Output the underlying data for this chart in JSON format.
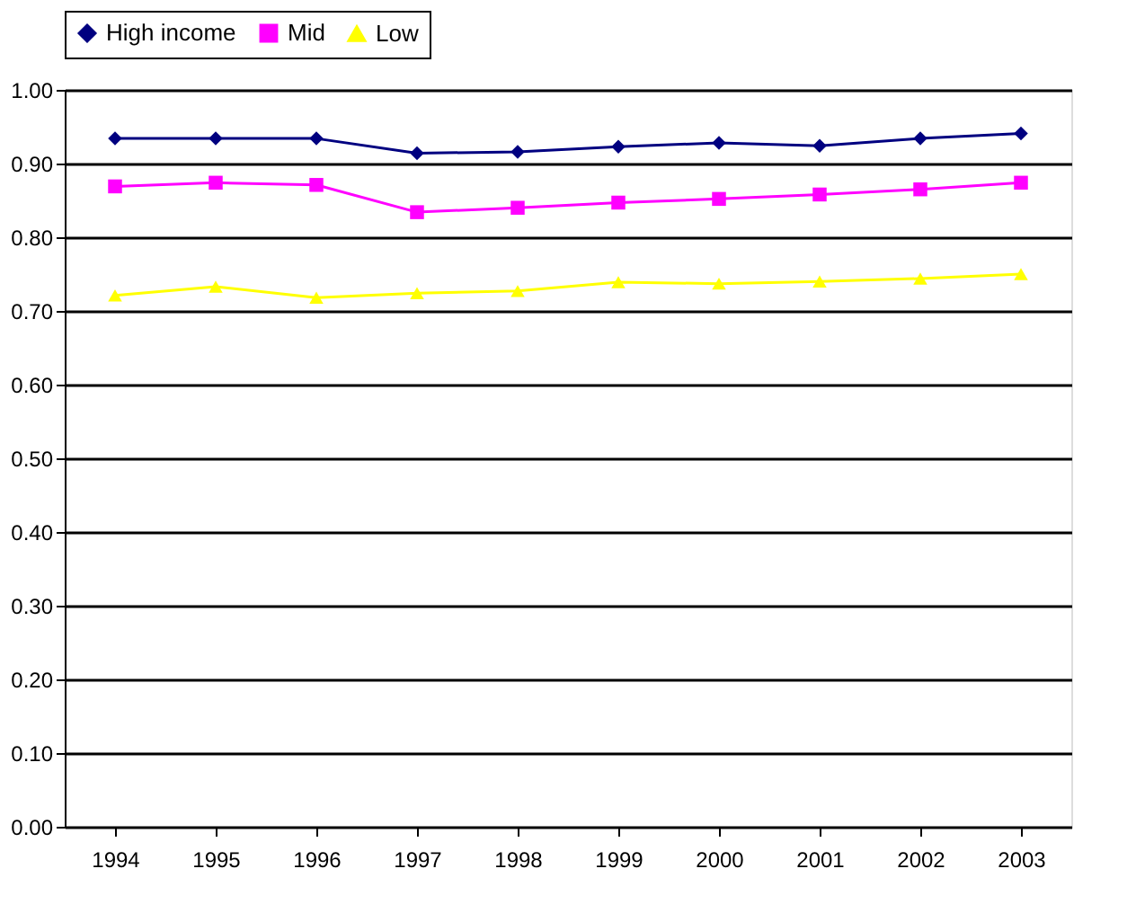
{
  "chart_data": {
    "type": "line",
    "categories": [
      "1994",
      "1995",
      "1996",
      "1997",
      "1998",
      "1999",
      "2000",
      "2001",
      "2002",
      "2003"
    ],
    "series": [
      {
        "name": "High income",
        "color": "#000080",
        "marker": "diamond",
        "values": [
          0.934,
          0.934,
          0.934,
          0.914,
          0.916,
          0.923,
          0.928,
          0.924,
          0.934,
          0.941
        ]
      },
      {
        "name": "Mid",
        "color": "#ff00ff",
        "marker": "square",
        "values": [
          0.869,
          0.874,
          0.871,
          0.834,
          0.84,
          0.847,
          0.852,
          0.858,
          0.865,
          0.874
        ]
      },
      {
        "name": "Low",
        "color": "#ffff00",
        "marker": "triangle",
        "values": [
          0.721,
          0.733,
          0.718,
          0.724,
          0.727,
          0.739,
          0.737,
          0.74,
          0.744,
          0.75
        ]
      }
    ],
    "ylim": [
      0,
      1
    ],
    "yticks": [
      {
        "value": 0,
        "label": "0.00"
      },
      {
        "value": 0.1,
        "label": "0.10"
      },
      {
        "value": 0.2,
        "label": "0.20"
      },
      {
        "value": 0.3,
        "label": "0.30"
      },
      {
        "value": 0.4,
        "label": "0.40"
      },
      {
        "value": 0.5,
        "label": "0.50"
      },
      {
        "value": 0.6,
        "label": "0.60"
      },
      {
        "value": 0.7,
        "label": "0.70"
      },
      {
        "value": 0.8,
        "label": "0.80"
      },
      {
        "value": 0.9,
        "label": "0.90"
      },
      {
        "value": 1,
        "label": "1.00"
      }
    ],
    "grid": "y",
    "legend": "top",
    "line_style": "solid"
  }
}
